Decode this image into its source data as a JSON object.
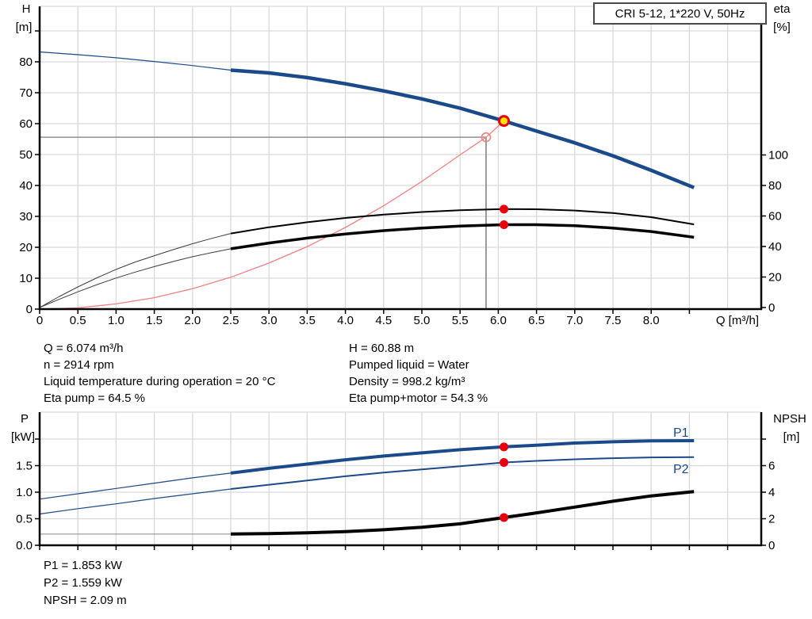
{
  "title_box": {
    "label": "CRI 5-12, 1*220 V, 50Hz"
  },
  "colors": {
    "curve_blue": "#1b4a8a",
    "curve_black": "#000000",
    "thin_gray": "#3c3c3c",
    "system_red": "#f08080",
    "dot_red": "#e8000d",
    "duty_yellow": "#ffe400",
    "grid": "#d9d9d9",
    "crosshair": "#909090",
    "axis": "#000000"
  },
  "info_top": {
    "left": [
      "Q = 6.074 m³/h",
      "n = 2914 rpm",
      "Liquid temperature during operation = 20 °C",
      "Eta pump = 64.5 %"
    ],
    "right": [
      "H = 60.88 m",
      "Pumped liquid = Water",
      "Density = 998.2 kg/m³",
      "Eta pump+motor = 54.3 %"
    ]
  },
  "info_bottom": [
    "P1 = 1.853 kW",
    "P2 = 1.559 kW",
    "NPSH = 2.09 m"
  ],
  "chart_data": [
    {
      "type": "line",
      "title": "CRI 5-12, 1*220 V, 50Hz — pump curve and efficiency",
      "xlabel": "Q [m³/h]",
      "ylabel_left": "H",
      "yunit_left": "[m]",
      "ylabel_right": "eta",
      "yunit_right": "[%]",
      "xlim": [
        0,
        9.44
      ],
      "ylim_left": [
        0,
        98
      ],
      "ylim_right": [
        0,
        197
      ],
      "x": {
        "tick_v": [
          0,
          0.5,
          1,
          1.5,
          2,
          2.5,
          3,
          3.5,
          4,
          4.5,
          5,
          5.5,
          6,
          6.5,
          7,
          7.5,
          8,
          8.5
        ],
        "tick_l": [
          "0",
          "0.5",
          "1.0",
          "1.5",
          "2.0",
          "2.5",
          "3.0",
          "3.5",
          "4.0",
          "4.5",
          "5.0",
          "5.5",
          "6.0",
          "6.5",
          "7.0",
          "7.5",
          "8.0",
          ""
        ],
        "grid": [
          0.5,
          1,
          1.5,
          2,
          2.5,
          3,
          3.5,
          4,
          4.5,
          5,
          5.5,
          6,
          6.5,
          7,
          7.5,
          8,
          8.5,
          9
        ]
      },
      "y_left": {
        "tick_v": [
          0,
          10,
          20,
          30,
          40,
          50,
          60,
          70,
          80,
          90
        ],
        "tick_l": [
          "0",
          "10",
          "20",
          "30",
          "40",
          "50",
          "60",
          "70",
          "80",
          ""
        ],
        "grid": [
          10,
          20,
          30,
          40,
          50,
          60,
          70,
          80,
          90
        ]
      },
      "y_right": {
        "tick_v": [
          0,
          20,
          40,
          60,
          80,
          100
        ],
        "tick_l": [
          "0",
          "20",
          "40",
          "60",
          "80",
          "100"
        ]
      },
      "series": [
        {
          "name": "pump-curve-low",
          "axis": "L",
          "color": "#1b4a8a",
          "w": 1.2,
          "q": [
            0,
            0.5,
            1,
            1.5,
            2,
            2.5
          ],
          "v": [
            83.2,
            82.3,
            81.3,
            80.1,
            78.8,
            77.3
          ]
        },
        {
          "name": "eta-pump-low",
          "axis": "R",
          "color": "#3c3c3c",
          "w": 1,
          "q": [
            0,
            0.25,
            0.5,
            0.75,
            1,
            1.25,
            1.5,
            1.75,
            2,
            2.25,
            2.5
          ],
          "v": [
            0,
            7,
            13.5,
            19.5,
            25,
            29.8,
            34,
            38,
            41.8,
            45.3,
            48.5
          ]
        },
        {
          "name": "eta-pump-motor-low",
          "axis": "R",
          "color": "#3c3c3c",
          "w": 1,
          "q": [
            0,
            0.25,
            0.5,
            0.75,
            1,
            1.25,
            1.5,
            1.75,
            2,
            2.25,
            2.5
          ],
          "v": [
            0,
            5.3,
            10.3,
            15,
            19.3,
            23.2,
            26.8,
            30.2,
            33.3,
            36,
            38.5
          ]
        },
        {
          "name": "system-curve",
          "axis": "L",
          "color": "#f08080",
          "w": 1.3,
          "q": [
            0,
            0.5,
            1,
            1.5,
            2,
            2.5,
            3,
            3.5,
            4,
            4.5,
            5,
            5.5,
            5.84,
            6.074
          ],
          "v": [
            0,
            0.4,
            1.7,
            3.7,
            6.6,
            10.3,
            14.9,
            20.2,
            26.4,
            33.4,
            41.3,
            49.9,
            55.6,
            60.88
          ]
        },
        {
          "name": "eta-pump",
          "axis": "R",
          "color": "#000000",
          "w": 2,
          "q": [
            2.5,
            3,
            3.5,
            4,
            4.5,
            5,
            5.5,
            6.074,
            6.5,
            7,
            7.5,
            8,
            8.56
          ],
          "v": [
            48.5,
            52.6,
            55.9,
            58.7,
            60.9,
            62.6,
            63.8,
            64.5,
            64.4,
            63.6,
            61.9,
            59.2,
            54.5
          ]
        },
        {
          "name": "eta-pump-motor",
          "axis": "R",
          "color": "#000000",
          "w": 3.5,
          "q": [
            2.5,
            3,
            3.5,
            4,
            4.5,
            5,
            5.5,
            6.074,
            6.5,
            7,
            7.5,
            8,
            8.56
          ],
          "v": [
            38.5,
            42.3,
            45.5,
            48.2,
            50.4,
            52.1,
            53.4,
            54.3,
            54.3,
            53.6,
            52.1,
            49.8,
            46
          ]
        },
        {
          "name": "pump-curve",
          "axis": "L",
          "color": "#1b4a8a",
          "w": 4.5,
          "q": [
            2.5,
            3,
            3.5,
            4,
            4.5,
            5,
            5.5,
            6.074,
            6.5,
            7,
            7.5,
            8,
            8.56
          ],
          "v": [
            77.3,
            76.4,
            74.9,
            72.9,
            70.6,
            68.0,
            65.0,
            60.88,
            57.6,
            53.8,
            49.6,
            44.9,
            39.3
          ]
        }
      ],
      "crosshair": {
        "q": 5.84,
        "h": 55.6
      },
      "markers": [
        {
          "name": "requested-duty-marker",
          "axis": "L",
          "q": 5.84,
          "v": 55.6,
          "r": 5.5,
          "fill": "none",
          "stroke": "#f08080",
          "sw": 1.6,
          "interactable": false
        },
        {
          "name": "eta-pump-point",
          "axis": "R",
          "q": 6.074,
          "v": 64.5,
          "r": 5.5,
          "fill": "#e8000d",
          "stroke": "none",
          "sw": 0,
          "interactable": false
        },
        {
          "name": "eta-pump-motor-point",
          "axis": "R",
          "q": 6.074,
          "v": 54.3,
          "r": 5.5,
          "fill": "#e8000d",
          "stroke": "none",
          "sw": 0,
          "interactable": false
        },
        {
          "name": "operating-point-marker",
          "axis": "L",
          "q": 6.074,
          "v": 60.88,
          "r": 6,
          "fill": "#ffe400",
          "stroke": "#e8000d",
          "sw": 3,
          "interactable": true
        }
      ]
    },
    {
      "type": "line",
      "title": "Power and NPSH curves",
      "xlabel": "",
      "ylabel_left": "P",
      "yunit_left": "[kW]",
      "ylabel_right": "NPSH",
      "yunit_right": "[m]",
      "xlim": [
        0,
        9.44
      ],
      "ylim_left": [
        0,
        2.5
      ],
      "ylim_right": [
        0,
        10
      ],
      "x": {
        "tick_v": [
          0,
          0.5,
          1,
          1.5,
          2,
          2.5,
          3,
          3.5,
          4,
          4.5,
          5,
          5.5,
          6,
          6.5,
          7,
          7.5,
          8,
          8.5,
          9
        ],
        "tick_l": [
          "",
          "",
          "",
          "",
          "",
          "",
          "",
          "",
          "",
          "",
          "",
          "",
          "",
          "",
          "",
          "",
          "",
          "",
          ""
        ],
        "grid": [
          0.5,
          1,
          1.5,
          2,
          2.5,
          3,
          3.5,
          4,
          4.5,
          5,
          5.5,
          6,
          6.5,
          7,
          7.5,
          8,
          8.5,
          9
        ]
      },
      "y_left": {
        "tick_v": [
          0,
          0.5,
          1,
          1.5,
          2
        ],
        "tick_l": [
          "0.0",
          "0.5",
          "1.0",
          "1.5",
          ""
        ],
        "grid": [
          0.5,
          1,
          1.5,
          2
        ]
      },
      "y_right": {
        "tick_v": [
          0,
          2,
          4,
          6,
          8
        ],
        "tick_l": [
          "0",
          "2",
          "4",
          "6",
          ""
        ]
      },
      "series_labels": {
        "p1": "P1",
        "p2": "P2"
      },
      "series": [
        {
          "name": "p1-low",
          "axis": "L",
          "color": "#1b4a8a",
          "w": 1.2,
          "q": [
            0,
            0.5,
            1,
            1.5,
            2,
            2.5
          ],
          "v": [
            0.87,
            0.97,
            1.07,
            1.17,
            1.27,
            1.36
          ]
        },
        {
          "name": "p2-low",
          "axis": "L",
          "color": "#1b4a8a",
          "w": 1.2,
          "q": [
            0,
            0.5,
            1,
            1.5,
            2,
            2.5
          ],
          "v": [
            0.59,
            0.69,
            0.78,
            0.88,
            0.97,
            1.06
          ]
        },
        {
          "name": "npsh-low",
          "axis": "R",
          "color": "#888888",
          "w": 1,
          "q": [
            0,
            2.5
          ],
          "v": [
            0.84,
            0.84
          ]
        },
        {
          "name": "p2",
          "axis": "L",
          "color": "#1b4a8a",
          "w": 2,
          "q": [
            2.5,
            3,
            3.5,
            4,
            4.5,
            5,
            5.5,
            6.074,
            6.5,
            7,
            7.5,
            8,
            8.56
          ],
          "v": [
            1.06,
            1.14,
            1.22,
            1.3,
            1.37,
            1.43,
            1.49,
            1.559,
            1.59,
            1.62,
            1.64,
            1.655,
            1.66
          ]
        },
        {
          "name": "p1",
          "axis": "L",
          "color": "#1b4a8a",
          "w": 4,
          "q": [
            2.5,
            3,
            3.5,
            4,
            4.5,
            5,
            5.5,
            6.074,
            6.5,
            7,
            7.5,
            8,
            8.56
          ],
          "v": [
            1.36,
            1.45,
            1.53,
            1.61,
            1.68,
            1.74,
            1.8,
            1.853,
            1.885,
            1.925,
            1.95,
            1.965,
            1.97
          ]
        },
        {
          "name": "npsh",
          "axis": "R",
          "color": "#000000",
          "w": 4,
          "q": [
            2.5,
            3,
            3.5,
            4,
            4.5,
            5,
            5.5,
            6.074,
            6.5,
            7,
            7.5,
            8,
            8.56
          ],
          "v": [
            0.85,
            0.88,
            0.94,
            1.03,
            1.17,
            1.36,
            1.62,
            2.09,
            2.44,
            2.88,
            3.32,
            3.72,
            4.05
          ]
        }
      ],
      "crosshair": null,
      "markers": [
        {
          "name": "p1-point",
          "axis": "L",
          "q": 6.074,
          "v": 1.853,
          "r": 5.5,
          "fill": "#e8000d",
          "stroke": "none",
          "sw": 0,
          "interactable": false
        },
        {
          "name": "p2-point",
          "axis": "L",
          "q": 6.074,
          "v": 1.559,
          "r": 5.5,
          "fill": "#e8000d",
          "stroke": "none",
          "sw": 0,
          "interactable": false
        },
        {
          "name": "npsh-point",
          "axis": "R",
          "q": 6.074,
          "v": 2.09,
          "r": 5.5,
          "fill": "#e8000d",
          "stroke": "none",
          "sw": 0,
          "interactable": false
        }
      ]
    }
  ]
}
